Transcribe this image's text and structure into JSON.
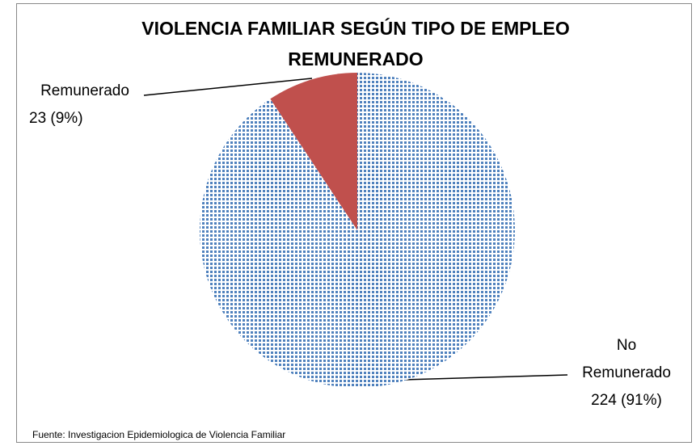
{
  "chart_data": {
    "type": "pie",
    "title": "VIOLENCIA FAMILIAR SEGÚN TIPO DE EMPLEO REMUNERADO",
    "categories": [
      "Remunerado",
      "No Remunerado"
    ],
    "values": [
      23,
      224
    ],
    "value_labels": [
      "23 (9%)",
      "224 (91%)"
    ],
    "colors": [
      "#c0504d",
      "#4f81bd"
    ],
    "patterns": [
      "solid",
      "dots"
    ],
    "note": "Fuente: Investigacion Epidemiologica de Violencia Familiar"
  }
}
